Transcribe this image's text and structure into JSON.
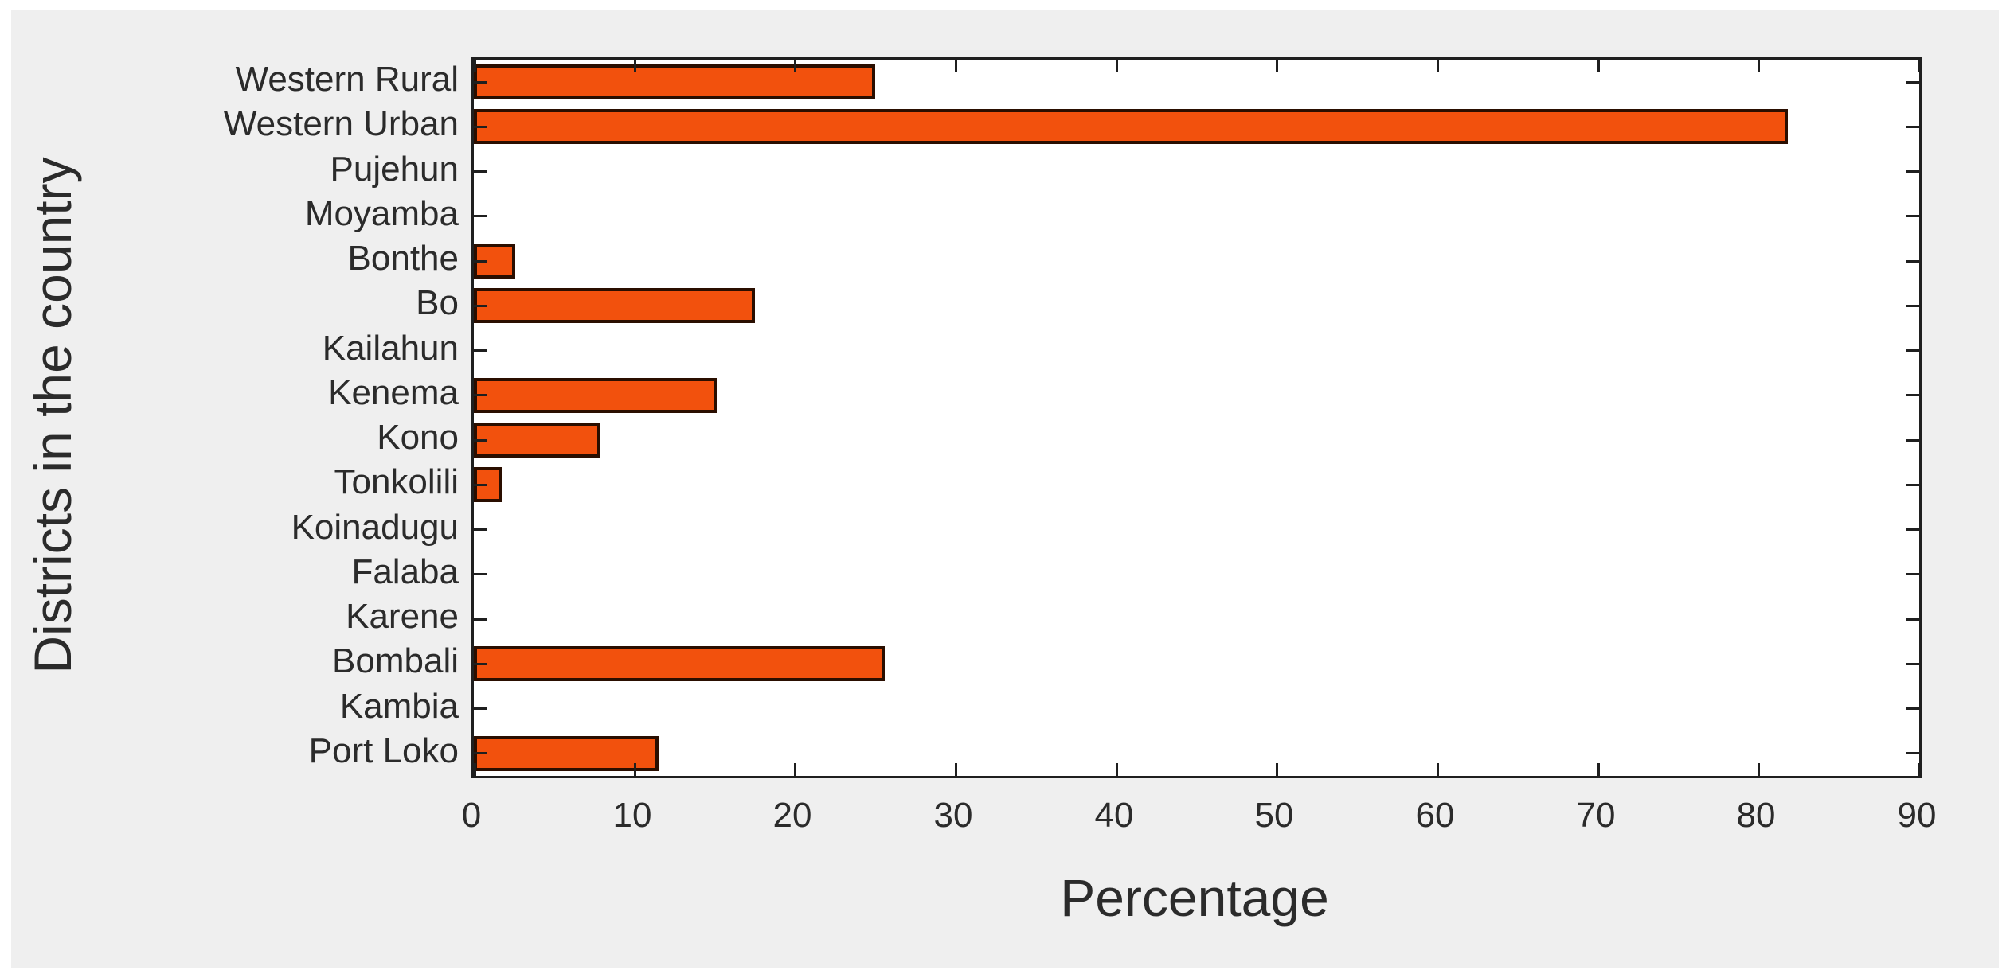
{
  "figure": {
    "background_color": "#efefef",
    "plot_background_color": "#ffffff",
    "axis_color": "#1f1f1f",
    "text_color": "#2b2b2b"
  },
  "chart_data": {
    "type": "bar",
    "orientation": "horizontal",
    "title": "",
    "xlabel": "Percentage",
    "ylabel": "Districts in the country",
    "categories_top_to_bottom": [
      "Western Rural",
      "Western Urban",
      "Pujehun",
      "Moyamba",
      "Bonthe",
      "Bo",
      "Kailahun",
      "Kenema",
      "Kono",
      "Tonkolili",
      "Koinadugu",
      "Falaba",
      "Karene",
      "Bombali",
      "Kambia",
      "Port Loko"
    ],
    "values": [
      25,
      81.8,
      0,
      0,
      2.6,
      17.5,
      0,
      15.1,
      7.9,
      1.8,
      0,
      0,
      0,
      25.6,
      0,
      11.5
    ],
    "xlim": [
      0,
      90
    ],
    "x_ticks": [
      0,
      10,
      20,
      30,
      40,
      50,
      60,
      70,
      80,
      90
    ],
    "grid": false,
    "box": true,
    "tick_direction": "in",
    "bar_color": "#F2510D",
    "bar_edge_color": "#2A0E00"
  }
}
